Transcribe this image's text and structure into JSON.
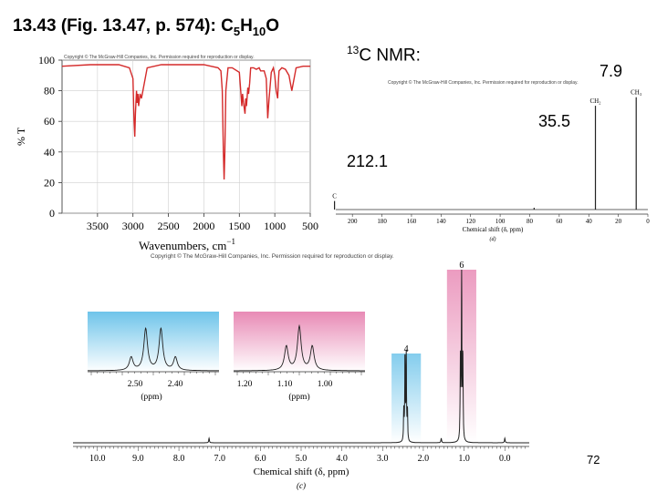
{
  "title": {
    "prefix": "13.43 (Fig. 13.47, p. 574):  C",
    "sub1": "5",
    "mid": "H",
    "sub2": "10",
    "suffix": "O"
  },
  "c13_heading": {
    "sup": "13",
    "text": "C NMR:"
  },
  "c13_peak_labels": [
    "7.9",
    "35.5",
    "212.1"
  ],
  "copyright": "Copyright © The McGraw-Hill Companies, Inc. Permission required for reproduction or display.",
  "page_number": "72",
  "chart_data": [
    {
      "type": "line",
      "name_hint": "IR spectrum",
      "xlabel": "Wavenumbers, cm",
      "xlabel_sup": "−1",
      "ylabel": "% T",
      "xlim": [
        4000,
        500
      ],
      "ylim": [
        0,
        100
      ],
      "x_ticks": [
        3500,
        3000,
        2500,
        2000,
        1500,
        1000,
        500
      ],
      "y_ticks": [
        0,
        20,
        40,
        60,
        80,
        100
      ],
      "color": "#d42a2a",
      "x": [
        4000,
        3600,
        3200,
        3050,
        3000,
        2985,
        2975,
        2965,
        2950,
        2940,
        2930,
        2920,
        2900,
        2880,
        2860,
        2800,
        2600,
        2400,
        2200,
        2000,
        1900,
        1800,
        1760,
        1740,
        1725,
        1715,
        1705,
        1690,
        1660,
        1600,
        1500,
        1480,
        1465,
        1455,
        1440,
        1420,
        1410,
        1400,
        1380,
        1370,
        1355,
        1340,
        1300,
        1260,
        1220,
        1200,
        1150,
        1120,
        1110,
        1100,
        1080,
        1050,
        1020,
        1000,
        980,
        960,
        950,
        940,
        900,
        850,
        800,
        760,
        700,
        600,
        500
      ],
      "y": [
        96,
        97,
        97,
        95,
        88,
        60,
        50,
        65,
        80,
        72,
        78,
        70,
        78,
        75,
        80,
        95,
        97,
        97,
        97,
        97,
        96,
        95,
        93,
        80,
        40,
        22,
        40,
        80,
        95,
        95,
        92,
        80,
        70,
        78,
        72,
        65,
        75,
        70,
        82,
        78,
        85,
        95,
        95,
        94,
        95,
        93,
        93,
        88,
        75,
        62,
        75,
        92,
        95,
        90,
        80,
        75,
        85,
        93,
        95,
        94,
        90,
        80,
        95,
        96,
        96
      ]
    },
    {
      "type": "line",
      "name_hint": "13C NMR spectrum",
      "xlabel": "Chemical shift (δ, ppm)",
      "panel": "(d)",
      "xlim": [
        210,
        0
      ],
      "x_ticks": [
        200,
        180,
        160,
        140,
        120,
        100,
        80,
        60,
        40,
        20,
        0
      ],
      "peaks": [
        {
          "x": 212.1,
          "height": 0.07,
          "label": "C"
        },
        {
          "x": 77,
          "height": 0.015,
          "label": ""
        },
        {
          "x": 35.5,
          "height": 0.85,
          "label": "CH₂"
        },
        {
          "x": 7.9,
          "height": 0.92,
          "label": "CH₃"
        }
      ]
    },
    {
      "type": "line",
      "name_hint": "1H NMR spectrum",
      "xlabel": "Chemical shift (δ, ppm)",
      "panel": "(c)",
      "xlim": [
        10.6,
        -0.6
      ],
      "x_ticks": [
        10.0,
        9.0,
        8.0,
        7.0,
        6.0,
        5.0,
        4.0,
        3.0,
        2.0,
        1.0,
        0.0
      ],
      "annotations": [
        {
          "x": 2.42,
          "label": "4",
          "multiplet": "quartet"
        },
        {
          "x": 1.06,
          "label": "6",
          "multiplet": "triplet"
        }
      ],
      "minor_peaks": [
        7.26,
        1.56,
        0.0
      ],
      "insets": [
        {
          "x_ticks": [
            "2.50",
            "2.40"
          ],
          "xlabel": "(ppm)",
          "color": "#7ec8e8",
          "kind": "quartet"
        },
        {
          "x_ticks": [
            "1.20",
            "1.10",
            "1.00"
          ],
          "xlabel": "(ppm)",
          "color": "#e893b8",
          "kind": "triplet"
        }
      ]
    }
  ]
}
